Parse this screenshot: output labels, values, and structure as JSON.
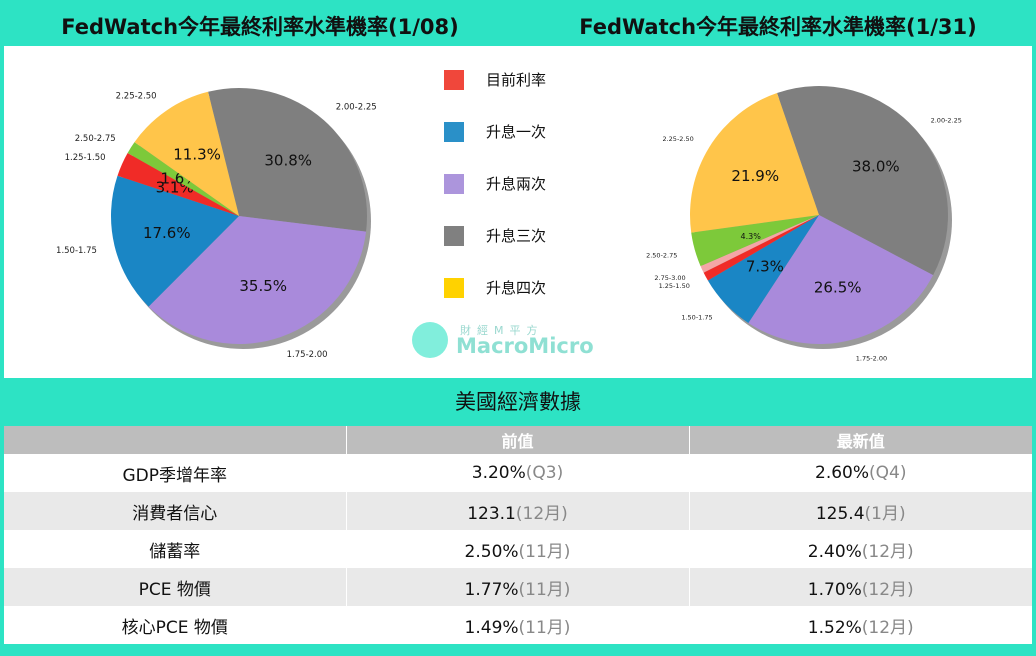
{
  "titles": {
    "left": "FedWatch今年最終利率水準機率(1/08)",
    "right": "FedWatch今年最終利率水準機率(1/31)"
  },
  "legend": [
    {
      "label": "目前利率",
      "color": "#f0473b"
    },
    {
      "label": "升息一次",
      "color": "#2a90c8"
    },
    {
      "label": "升息兩次",
      "color": "#ac95dc"
    },
    {
      "label": "升息三次",
      "color": "#808080"
    },
    {
      "label": "升息四次",
      "color": "#ffd200"
    }
  ],
  "watermark": {
    "zh": "財經M平方",
    "en": "MacroMicro"
  },
  "chart_data": [
    {
      "type": "pie",
      "title": "FedWatch今年最終利率水準機率(1/08)",
      "slices": [
        {
          "label": "2.00-2.25",
          "pct_label": "30.8%",
          "value": 30.8,
          "color": "#7f7f7f"
        },
        {
          "label": "1.75-2.00",
          "pct_label": "35.5%",
          "value": 35.5,
          "color": "#a98adb"
        },
        {
          "label": "1.50-1.75",
          "pct_label": "17.6%",
          "value": 17.6,
          "color": "#1a86c5"
        },
        {
          "label": "1.25-1.50",
          "pct_label": "3.1%",
          "value": 3.1,
          "color": "#f02b27"
        },
        {
          "label": "2.50-2.75",
          "pct_label": "1.6%",
          "value": 1.6,
          "color": "#7dc93a"
        },
        {
          "label": "2.25-2.50",
          "pct_label": "11.3%",
          "value": 11.3,
          "color": "#ffc54a"
        }
      ]
    },
    {
      "type": "pie",
      "title": "FedWatch今年最終利率水準機率(1/31)",
      "slices": [
        {
          "label": "2.00-2.25",
          "pct_label": "38.0%",
          "value": 38.0,
          "color": "#7f7f7f"
        },
        {
          "label": "1.75-2.00",
          "pct_label": "26.5%",
          "value": 26.5,
          "color": "#a98adb"
        },
        {
          "label": "1.50-1.75",
          "pct_label": "7.3%",
          "value": 7.3,
          "color": "#1a86c5"
        },
        {
          "label": "1.25-1.50",
          "pct_label": "",
          "value": 1.1,
          "color": "#f02b27"
        },
        {
          "label": "2.75-3.00",
          "pct_label": "",
          "value": 0.9,
          "color": "#f4a6a6"
        },
        {
          "label": "2.50-2.75",
          "pct_label": "4.3%",
          "value": 4.3,
          "color": "#7dc93a"
        },
        {
          "label": "2.25-2.50",
          "pct_label": "21.9%",
          "value": 21.9,
          "color": "#ffc54a"
        }
      ]
    }
  ],
  "table": {
    "title": "美國經濟數據",
    "columns": [
      "",
      "前值",
      "最新值"
    ],
    "rows": [
      {
        "name": "GDP季增年率",
        "prev": "3.20%",
        "prev_period": "(Q3)",
        "latest": "2.60%",
        "latest_period": "(Q4)"
      },
      {
        "name": "消費者信心",
        "prev": "123.1",
        "prev_period": "(12月)",
        "latest": "125.4",
        "latest_period": "(1月)"
      },
      {
        "name": "儲蓄率",
        "prev": "2.50%",
        "prev_period": "(11月)",
        "latest": "2.40%",
        "latest_period": "(12月)"
      },
      {
        "name": "PCE 物價",
        "prev": "1.77%",
        "prev_period": "(11月)",
        "latest": "1.70%",
        "latest_period": "(12月)"
      },
      {
        "name": "核心PCE 物價",
        "prev": "1.49%",
        "prev_period": "(11月)",
        "latest": "1.52%",
        "latest_period": "(12月)"
      }
    ]
  }
}
